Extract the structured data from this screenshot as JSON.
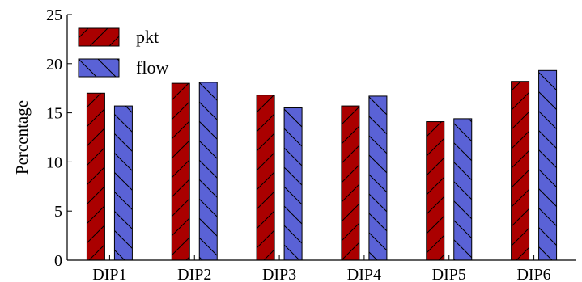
{
  "chart_data": {
    "type": "bar",
    "ylabel": "Percentage",
    "xlabel": "",
    "ylim": [
      0,
      25
    ],
    "yticks": [
      0,
      5,
      10,
      15,
      20,
      25
    ],
    "categories": [
      "DIP1",
      "DIP2",
      "DIP3",
      "DIP4",
      "DIP5",
      "DIP6"
    ],
    "series": [
      {
        "name": "pkt",
        "values": [
          17.0,
          18.0,
          16.8,
          15.7,
          14.1,
          18.2
        ],
        "color": "#aa0000",
        "hatch": "forward-diagonal"
      },
      {
        "name": "flow",
        "values": [
          15.7,
          18.1,
          15.5,
          16.7,
          14.4,
          19.3
        ],
        "color": "#5a62d6",
        "hatch": "back-diagonal"
      }
    ],
    "legend": "top-left",
    "grid": false
  }
}
